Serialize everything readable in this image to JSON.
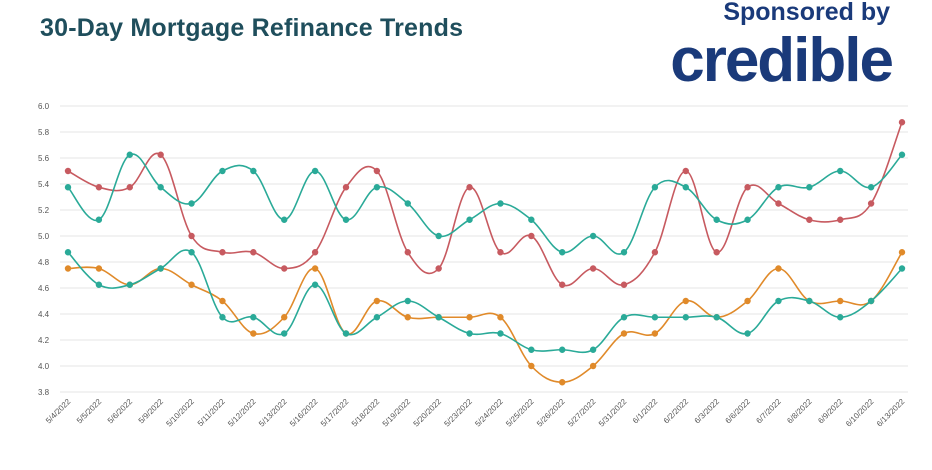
{
  "header": {
    "title": "30-Day Mortgage Refinance Trends",
    "sponsor_label": "Sponsored by",
    "brand": "credible"
  },
  "chart_data": {
    "type": "line",
    "title": "30-Day Mortgage Refinance Trends",
    "xlabel": "",
    "ylabel": "",
    "ylim": [
      3.8,
      6.0
    ],
    "yticks": [
      "6.0",
      "5.8",
      "5.6",
      "5.4",
      "5.2",
      "5.0",
      "4.8",
      "4.6",
      "4.4",
      "4.2",
      "4.0",
      "3.8"
    ],
    "grid": true,
    "categories": [
      "5/4/2022",
      "5/5/2022",
      "5/6/2022",
      "5/9/2022",
      "5/10/2022",
      "5/11/2022",
      "5/12/2022",
      "5/13/2022",
      "5/16/2022",
      "5/17/2022",
      "5/18/2022",
      "5/19/2022",
      "5/20/2022",
      "5/23/2022",
      "5/24/2022",
      "5/25/2022",
      "5/26/2022",
      "5/27/2022",
      "5/31/2022",
      "6/1/2022",
      "6/2/2022",
      "6/3/2022",
      "6/6/2022",
      "6/7/2022",
      "6/8/2022",
      "6/9/2022",
      "6/10/2022",
      "6/13/2022"
    ],
    "series": [
      {
        "color": "#c75a60",
        "values": [
          5.5,
          5.375,
          5.375,
          5.625,
          5.0,
          4.875,
          4.875,
          4.75,
          4.875,
          5.375,
          5.5,
          4.875,
          4.75,
          5.375,
          4.875,
          5.0,
          4.625,
          4.75,
          4.625,
          4.875,
          5.5,
          4.875,
          5.375,
          5.25,
          5.125,
          5.125,
          5.25,
          5.875
        ]
      },
      {
        "color": "#2aaa98",
        "values": [
          5.375,
          5.125,
          5.625,
          5.375,
          5.25,
          5.5,
          5.5,
          5.125,
          5.5,
          5.125,
          5.375,
          5.25,
          5.0,
          5.125,
          5.25,
          5.125,
          4.875,
          5.0,
          4.875,
          5.375,
          5.375,
          5.125,
          5.125,
          5.375,
          5.375,
          5.5,
          5.375,
          5.625
        ]
      },
      {
        "color": "#e08a2a",
        "values": [
          4.75,
          4.75,
          4.625,
          4.75,
          4.625,
          4.5,
          4.25,
          4.375,
          4.75,
          4.25,
          4.5,
          4.375,
          4.375,
          4.375,
          4.375,
          4.0,
          3.875,
          4.0,
          4.25,
          4.25,
          4.5,
          4.375,
          4.5,
          4.75,
          4.5,
          4.5,
          4.5,
          4.875
        ]
      },
      {
        "color": "#2aaa98",
        "values": [
          4.875,
          4.625,
          4.625,
          4.75,
          4.875,
          4.375,
          4.375,
          4.25,
          4.625,
          4.25,
          4.375,
          4.5,
          4.375,
          4.25,
          4.25,
          4.125,
          4.125,
          4.125,
          4.375,
          4.375,
          4.375,
          4.375,
          4.25,
          4.5,
          4.5,
          4.375,
          4.5,
          4.75
        ]
      }
    ]
  }
}
